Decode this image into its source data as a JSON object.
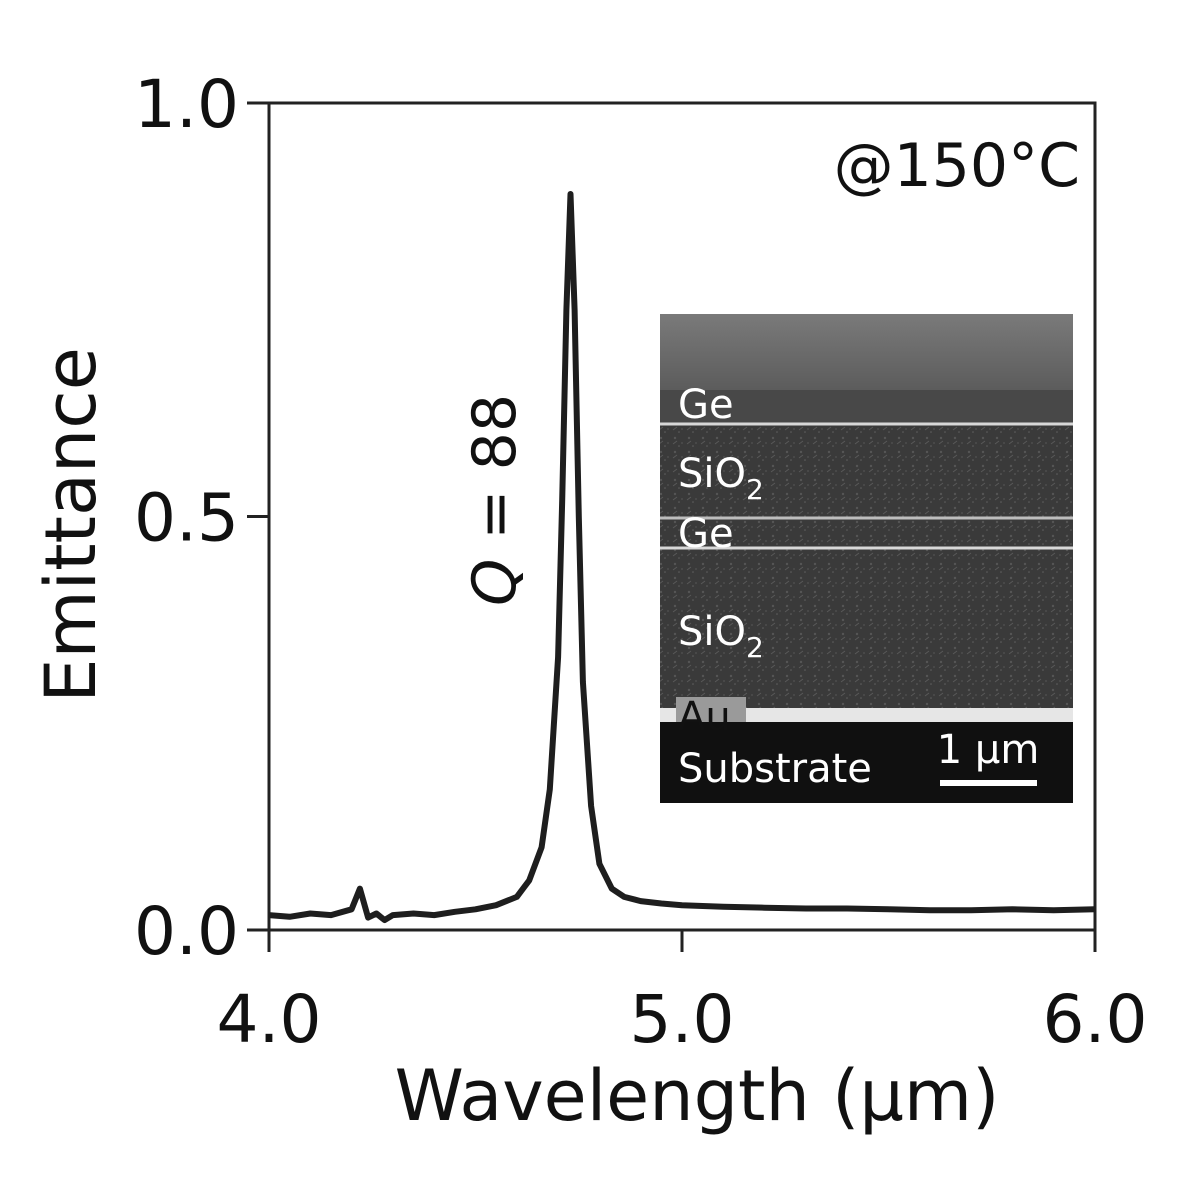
{
  "chart_data": {
    "type": "line",
    "xlabel": "Wavelength (μm)",
    "ylabel": "Emittance",
    "xlim": [
      4.0,
      6.0
    ],
    "ylim": [
      0.0,
      1.0
    ],
    "x_ticks": [
      "4.0",
      "5.0",
      "6.0"
    ],
    "y_ticks": [
      "0.0",
      "0.5",
      "1.0"
    ],
    "grid": false,
    "series": [
      {
        "x": [
          4.0,
          4.05,
          4.1,
          4.15,
          4.2,
          4.22,
          4.24,
          4.26,
          4.28,
          4.3,
          4.35,
          4.4,
          4.45,
          4.5,
          4.55,
          4.6,
          4.63,
          4.66,
          4.68,
          4.7,
          4.71,
          4.72,
          4.73,
          4.74,
          4.75,
          4.76,
          4.78,
          4.8,
          4.83,
          4.86,
          4.9,
          4.95,
          5.0,
          5.1,
          5.2,
          5.3,
          5.4,
          5.5,
          5.6,
          5.7,
          5.8,
          5.9,
          6.0
        ],
        "y": [
          0.018,
          0.016,
          0.02,
          0.018,
          0.025,
          0.05,
          0.015,
          0.02,
          0.012,
          0.018,
          0.02,
          0.018,
          0.022,
          0.025,
          0.03,
          0.04,
          0.06,
          0.1,
          0.17,
          0.33,
          0.52,
          0.75,
          0.89,
          0.75,
          0.5,
          0.3,
          0.15,
          0.08,
          0.05,
          0.04,
          0.035,
          0.032,
          0.03,
          0.028,
          0.027,
          0.026,
          0.026,
          0.025,
          0.024,
          0.024,
          0.025,
          0.024,
          0.025
        ]
      }
    ],
    "annotations": {
      "condition": "@150°C",
      "q_factor": {
        "italic": "Q",
        "rest": " = 88"
      }
    },
    "inset": {
      "description_layers": [
        "Ge",
        "SiO",
        "Ge",
        "SiO",
        "Au",
        "Substrate"
      ],
      "layer_labels": [
        {
          "text": "Ge",
          "sub": ""
        },
        {
          "text": "SiO",
          "sub": "2"
        },
        {
          "text": "Ge",
          "sub": ""
        },
        {
          "text": "SiO",
          "sub": "2"
        },
        {
          "text": "Au",
          "sub": ""
        },
        {
          "text": "Substrate",
          "sub": ""
        }
      ],
      "scale_bar": "1 μm"
    }
  }
}
